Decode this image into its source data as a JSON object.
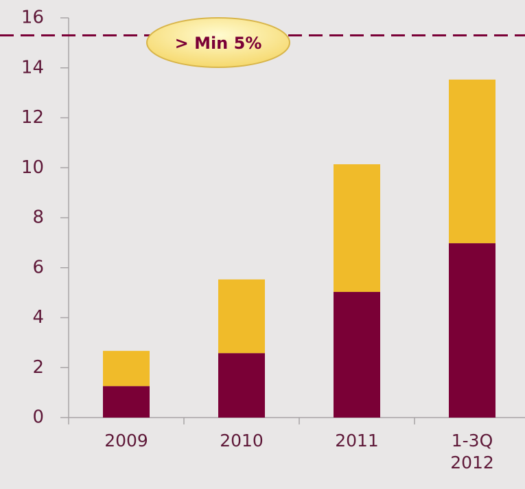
{
  "chart_data": {
    "type": "stacked_bar",
    "categories": [
      "2009",
      "2010",
      "2011",
      "1-3Q 2012"
    ],
    "series": [
      {
        "color": "#7a0036",
        "values": [
          1.26,
          2.58,
          5.03,
          6.98
        ]
      },
      {
        "color": "#f0bb2a",
        "values": [
          1.41,
          2.95,
          5.11,
          6.55
        ]
      }
    ],
    "ylim": [
      0,
      16
    ],
    "yticks": [
      0,
      2,
      4,
      6,
      8,
      10,
      12,
      14,
      16
    ],
    "annotation": {
      "text": "> Min 5%",
      "value": 15.3,
      "color": "#7a0036"
    }
  }
}
